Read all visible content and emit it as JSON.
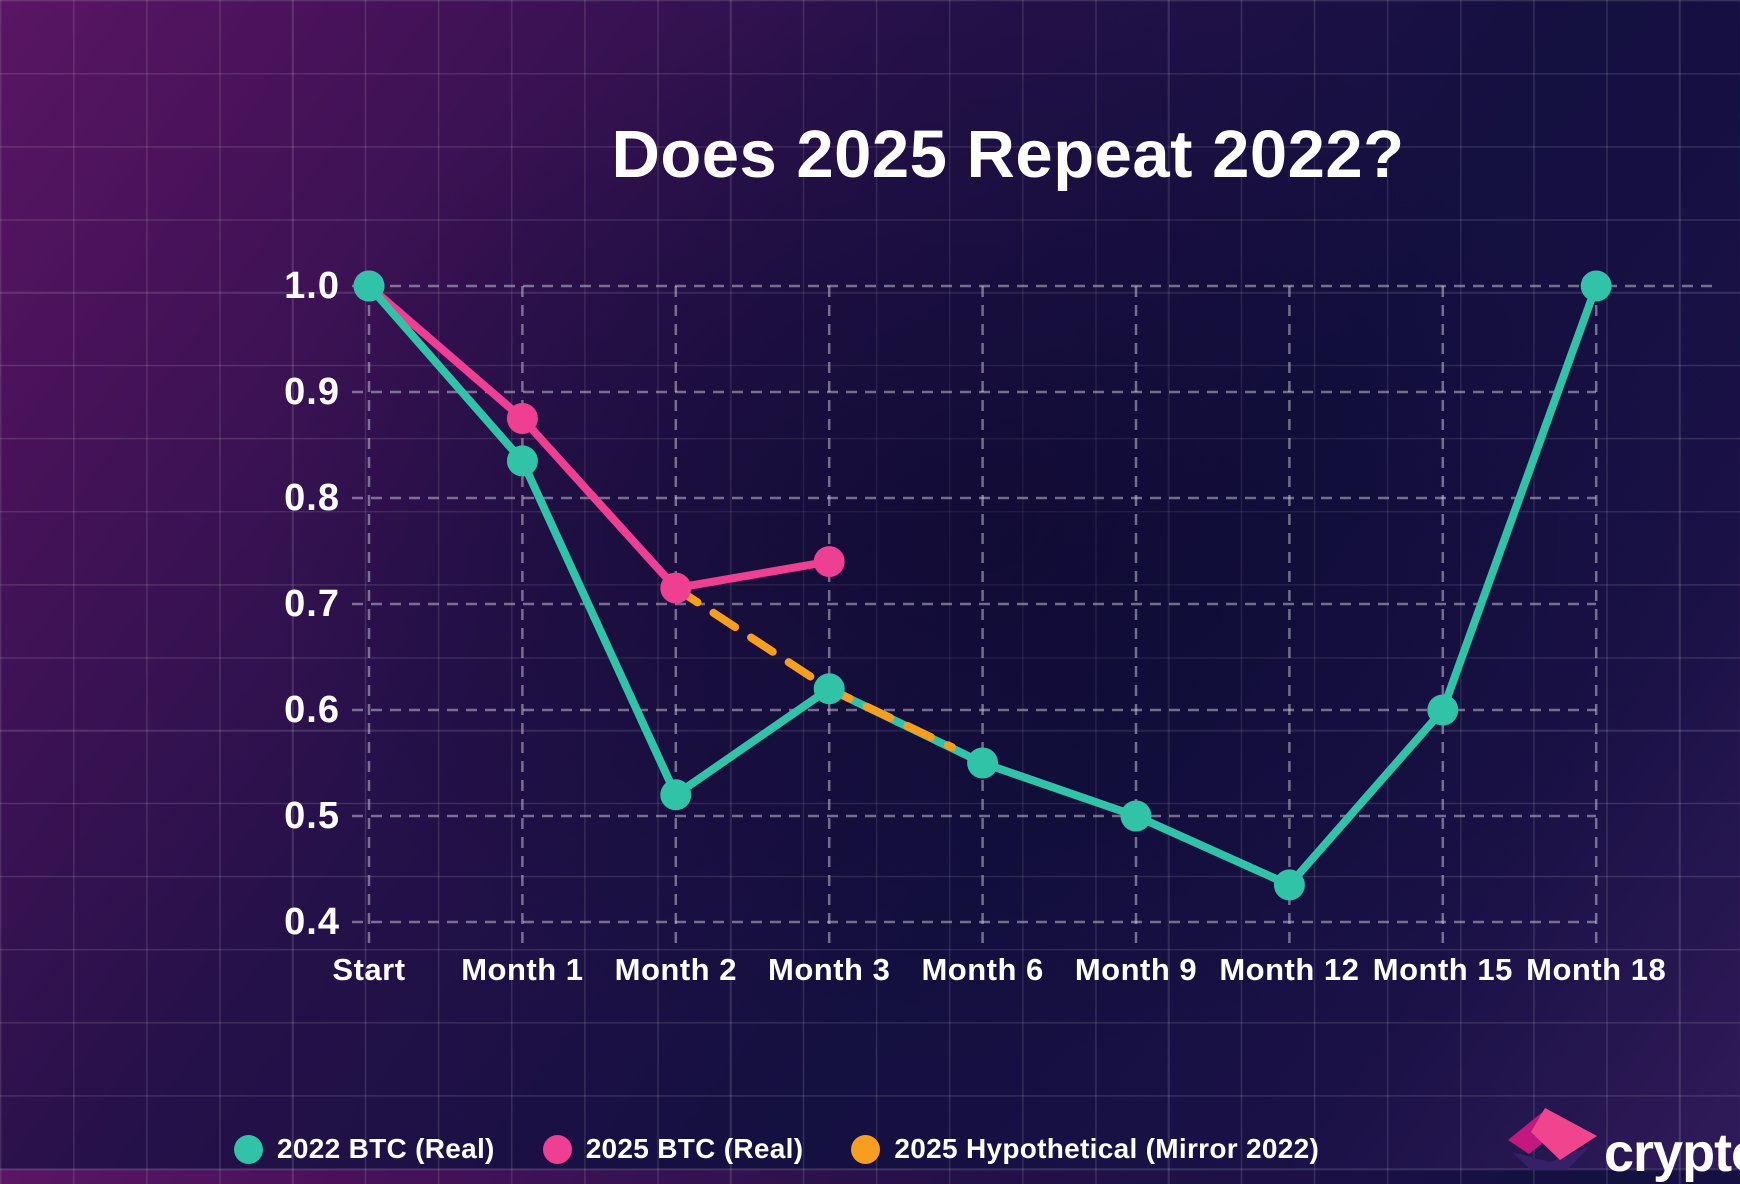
{
  "title": "Does 2025 Repeat 2022?",
  "logo": {
    "text": "crypto"
  },
  "colors": {
    "background_top_left": "#5a1663",
    "background_center": "#141040",
    "background_bottom_right": "#301b59",
    "gridline": "#cfcede",
    "text": "#ffffff",
    "teal": "#30c3a7",
    "pink": "#ee3f93",
    "orange": "#f59e20"
  },
  "chart_data": {
    "type": "line",
    "title": "Does 2025 Repeat 2022?",
    "categories": [
      "Start",
      "Month 1",
      "Month 2",
      "Month 3",
      "Month 6",
      "Month 9",
      "Month 12",
      "Month 15",
      "Month 18"
    ],
    "y_ticks": [
      "1.0",
      "0.9",
      "0.8",
      "0.7",
      "0.6",
      "0.5",
      "0.4"
    ],
    "ylim": [
      0.4,
      1.0
    ],
    "xlabel": "",
    "ylabel": "",
    "grid": "dashed-both-axes",
    "legend_position": "bottom-left",
    "series": [
      {
        "name": "2022 BTC (Real)",
        "color": "#30c3a7",
        "style": "solid",
        "markers": true,
        "x_index": [
          0,
          1,
          2,
          3,
          4,
          5,
          6,
          7,
          8
        ],
        "values": [
          1.0,
          0.835,
          0.52,
          0.62,
          0.55,
          0.5,
          0.435,
          0.6,
          1.0
        ]
      },
      {
        "name": "2025 BTC (Real)",
        "color": "#ee3f93",
        "style": "solid",
        "markers": true,
        "x_index": [
          0,
          1,
          2,
          3
        ],
        "values": [
          1.0,
          0.875,
          0.715,
          0.74
        ]
      },
      {
        "name": "2025 Hypothetical (Mirror 2022)",
        "color": "#f59e20",
        "style": "dashed",
        "markers": false,
        "x_index": [
          2,
          3,
          3.8
        ],
        "values": [
          0.715,
          0.62,
          0.565
        ]
      }
    ]
  }
}
